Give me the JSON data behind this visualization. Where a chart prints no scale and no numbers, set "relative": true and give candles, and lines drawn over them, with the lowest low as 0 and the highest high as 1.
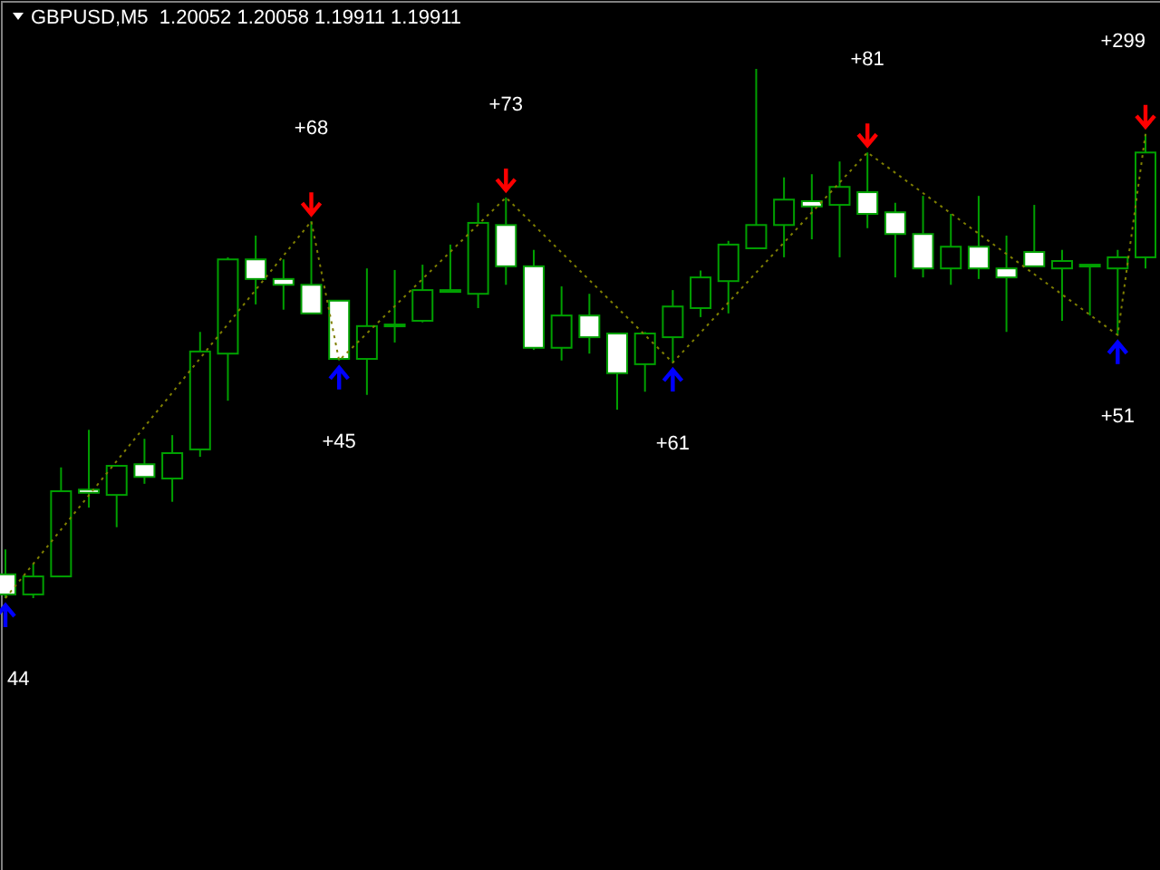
{
  "chart_data": {
    "type": "candlestick",
    "title": "GBPUSD,M5  1.20052 1.20058 1.19911 1.19911",
    "relative": true,
    "categories": [
      null,
      null,
      null,
      null,
      null,
      null,
      null,
      null,
      null,
      null,
      null,
      null,
      null,
      null,
      null,
      null,
      null,
      null,
      null,
      null,
      null,
      null,
      null,
      null,
      null,
      null,
      null,
      null,
      null,
      null,
      null,
      null,
      null,
      null,
      null,
      null,
      null,
      null,
      null,
      null,
      null,
      null
    ],
    "color": "#00a000",
    "ohlc": [
      [
        0.045,
        0.092,
        0,
        0.007
      ],
      [
        0.007,
        0.065,
        0,
        0.041
      ],
      [
        0.041,
        0.247,
        0.041,
        0.202
      ],
      [
        0.205,
        0.318,
        0.171,
        0.199
      ],
      [
        0.195,
        0.25,
        0.134,
        0.25
      ],
      [
        0.253,
        0.301,
        0.216,
        0.229
      ],
      [
        0.226,
        0.308,
        0.182,
        0.274
      ],
      [
        0.281,
        0.503,
        0.267,
        0.466
      ],
      [
        0.462,
        0.644,
        0.373,
        0.64
      ],
      [
        0.64,
        0.685,
        0.555,
        0.603
      ],
      [
        0.603,
        0.64,
        0.545,
        0.592
      ],
      [
        0.592,
        0.712,
        0.538,
        0.538
      ],
      [
        0.562,
        0.562,
        0.449,
        0.452
      ],
      [
        0.452,
        0.623,
        0.384,
        0.514
      ],
      [
        0.514,
        0.62,
        0.483,
        0.517
      ],
      [
        0.524,
        0.63,
        0.521,
        0.582
      ],
      [
        0.579,
        0.668,
        0.579,
        0.582
      ],
      [
        0.575,
        0.747,
        0.548,
        0.709
      ],
      [
        0.705,
        0.757,
        0.592,
        0.627
      ],
      [
        0.627,
        0.658,
        0.469,
        0.473
      ],
      [
        0.473,
        0.589,
        0.449,
        0.534
      ],
      [
        0.534,
        0.575,
        0.462,
        0.493
      ],
      [
        0.5,
        0.5,
        0.356,
        0.425
      ],
      [
        0.442,
        0.503,
        0.39,
        0.5
      ],
      [
        0.493,
        0.582,
        0.445,
        0.551
      ],
      [
        0.548,
        0.619,
        0.531,
        0.606
      ],
      [
        0.599,
        0.675,
        0.538,
        0.668
      ],
      [
        0.661,
        1,
        0.661,
        0.705
      ],
      [
        0.705,
        0.795,
        0.644,
        0.753
      ],
      [
        0.75,
        0.801,
        0.678,
        0.74
      ],
      [
        0.743,
        0.825,
        0.644,
        0.777
      ],
      [
        0.767,
        0.842,
        0.699,
        0.726
      ],
      [
        0.729,
        0.747,
        0.606,
        0.688
      ],
      [
        0.688,
        0.76,
        0.606,
        0.623
      ],
      [
        0.623,
        0.726,
        0.592,
        0.664
      ],
      [
        0.664,
        0.76,
        0.603,
        0.623
      ],
      [
        0.623,
        0.685,
        0.503,
        0.606
      ],
      [
        0.654,
        0.743,
        0.627,
        0.627
      ],
      [
        0.623,
        0.658,
        0.524,
        0.637
      ],
      [
        0.627,
        0.63,
        0.534,
        0.63
      ],
      [
        0.623,
        0.658,
        0.497,
        0.644
      ],
      [
        0.644,
        0.877,
        0.623,
        0.842
      ]
    ],
    "series": [
      {
        "type": "line",
        "color": "#808000",
        "line_style": "dotted",
        "values": [
          0,
          null,
          null,
          null,
          null,
          null,
          null,
          null,
          null,
          null,
          null,
          0.712,
          0.449,
          null,
          null,
          null,
          null,
          null,
          0.757,
          null,
          null,
          null,
          null,
          null,
          0.445,
          null,
          null,
          null,
          null,
          null,
          null,
          0.842,
          null,
          null,
          null,
          null,
          null,
          null,
          null,
          null,
          0.497,
          0.877
        ]
      }
    ],
    "annotations": [
      "44",
      "+68",
      "+45",
      "+73",
      "+61",
      "+81",
      "+51",
      "+299"
    ]
  }
}
